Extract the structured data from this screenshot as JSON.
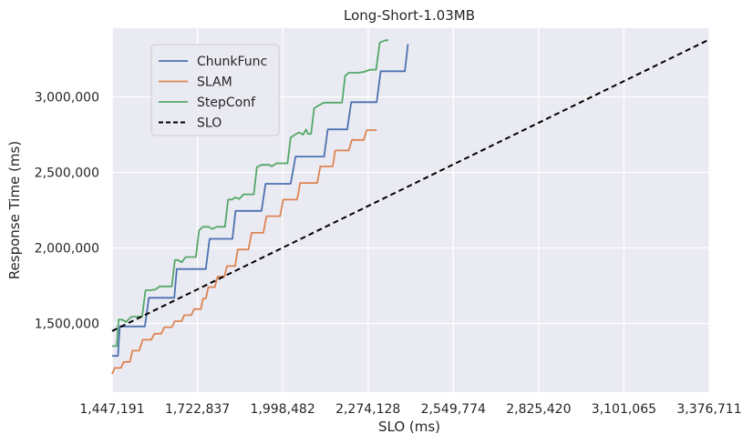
{
  "chart_data": {
    "type": "line",
    "title": "Long-Short-1.03MB",
    "xlabel": "SLO (ms)",
    "ylabel": "Response Time (ms)",
    "xlim": [
      1447191,
      3376711
    ],
    "ylim": [
      1045000,
      3455000
    ],
    "x_ticks": [
      1447191,
      1722837,
      1998482,
      2274128,
      2549774,
      2825420,
      3101065,
      3376711
    ],
    "x_tick_labels": [
      "1,447,191",
      "1,722,837",
      "1,998,482",
      "2,274,128",
      "2,549,774",
      "2,825,420",
      "3,101,065",
      "3,376,711"
    ],
    "y_ticks": [
      1500000,
      2000000,
      2500000,
      3000000
    ],
    "y_tick_labels": [
      "1,500,000",
      "2,000,000",
      "2,500,000",
      "3,000,000"
    ],
    "grid": true,
    "legend_position": "top-left",
    "series": [
      {
        "name": "ChunkFunc",
        "color": "#4c72b0",
        "style": "solid",
        "points": [
          [
            1447191,
            1285000
          ],
          [
            1466000,
            1285000
          ],
          [
            1472000,
            1480000
          ],
          [
            1553000,
            1480000
          ],
          [
            1566000,
            1670000
          ],
          [
            1648000,
            1670000
          ],
          [
            1656000,
            1860000
          ],
          [
            1750000,
            1860000
          ],
          [
            1762000,
            2060000
          ],
          [
            1836000,
            2060000
          ],
          [
            1846000,
            2245000
          ],
          [
            1930000,
            2245000
          ],
          [
            1943000,
            2425000
          ],
          [
            2024000,
            2425000
          ],
          [
            2040000,
            2605000
          ],
          [
            2132000,
            2605000
          ],
          [
            2144000,
            2785000
          ],
          [
            2207000,
            2785000
          ],
          [
            2220000,
            2965000
          ],
          [
            2302000,
            2965000
          ],
          [
            2315000,
            3170000
          ],
          [
            2393000,
            3170000
          ],
          [
            2403000,
            3350000
          ]
        ]
      },
      {
        "name": "SLAM",
        "color": "#dd8452",
        "style": "solid",
        "points": [
          [
            1447191,
            1165000
          ],
          [
            1455000,
            1205000
          ],
          [
            1476000,
            1205000
          ],
          [
            1484000,
            1245000
          ],
          [
            1505000,
            1245000
          ],
          [
            1513000,
            1320000
          ],
          [
            1535000,
            1320000
          ],
          [
            1546000,
            1392000
          ],
          [
            1574000,
            1392000
          ],
          [
            1584000,
            1432000
          ],
          [
            1606000,
            1432000
          ],
          [
            1616000,
            1475000
          ],
          [
            1640000,
            1475000
          ],
          [
            1650000,
            1515000
          ],
          [
            1672000,
            1515000
          ],
          [
            1680000,
            1555000
          ],
          [
            1703000,
            1555000
          ],
          [
            1712000,
            1595000
          ],
          [
            1734000,
            1595000
          ],
          [
            1741000,
            1665000
          ],
          [
            1750000,
            1665000
          ],
          [
            1758000,
            1740000
          ],
          [
            1779000,
            1740000
          ],
          [
            1788000,
            1810000
          ],
          [
            1810000,
            1810000
          ],
          [
            1818000,
            1880000
          ],
          [
            1845000,
            1880000
          ],
          [
            1853000,
            1990000
          ],
          [
            1888000,
            1990000
          ],
          [
            1898000,
            2100000
          ],
          [
            1936000,
            2100000
          ],
          [
            1946000,
            2210000
          ],
          [
            1990000,
            2210000
          ],
          [
            2000000,
            2320000
          ],
          [
            2045000,
            2320000
          ],
          [
            2055000,
            2430000
          ],
          [
            2110000,
            2430000
          ],
          [
            2120000,
            2540000
          ],
          [
            2160000,
            2540000
          ],
          [
            2168000,
            2645000
          ],
          [
            2212000,
            2645000
          ],
          [
            2222000,
            2715000
          ],
          [
            2260000,
            2715000
          ],
          [
            2270000,
            2780000
          ],
          [
            2302000,
            2780000
          ]
        ]
      },
      {
        "name": "StepConf",
        "color": "#55a868",
        "style": "solid",
        "points": [
          [
            1447191,
            1350000
          ],
          [
            1462000,
            1350000
          ],
          [
            1468000,
            1525000
          ],
          [
            1480000,
            1525000
          ],
          [
            1492000,
            1510000
          ],
          [
            1510000,
            1545000
          ],
          [
            1544000,
            1545000
          ],
          [
            1555000,
            1720000
          ],
          [
            1570000,
            1720000
          ],
          [
            1588000,
            1725000
          ],
          [
            1600000,
            1745000
          ],
          [
            1640000,
            1745000
          ],
          [
            1650000,
            1920000
          ],
          [
            1660000,
            1920000
          ],
          [
            1672000,
            1905000
          ],
          [
            1685000,
            1940000
          ],
          [
            1718000,
            1940000
          ],
          [
            1728000,
            2115000
          ],
          [
            1740000,
            2140000
          ],
          [
            1760000,
            2140000
          ],
          [
            1770000,
            2125000
          ],
          [
            1785000,
            2140000
          ],
          [
            1812000,
            2140000
          ],
          [
            1822000,
            2320000
          ],
          [
            1835000,
            2320000
          ],
          [
            1845000,
            2335000
          ],
          [
            1858000,
            2325000
          ],
          [
            1872000,
            2355000
          ],
          [
            1905000,
            2355000
          ],
          [
            1915000,
            2535000
          ],
          [
            1930000,
            2550000
          ],
          [
            1955000,
            2550000
          ],
          [
            1963000,
            2540000
          ],
          [
            1978000,
            2560000
          ],
          [
            2014000,
            2560000
          ],
          [
            2024000,
            2730000
          ],
          [
            2038000,
            2750000
          ],
          [
            2052000,
            2765000
          ],
          [
            2064000,
            2750000
          ],
          [
            2074000,
            2785000
          ],
          [
            2080000,
            2755000
          ],
          [
            2090000,
            2755000
          ],
          [
            2100000,
            2925000
          ],
          [
            2116000,
            2945000
          ],
          [
            2132000,
            2962000
          ],
          [
            2190000,
            2962000
          ],
          [
            2200000,
            3140000
          ],
          [
            2212000,
            3160000
          ],
          [
            2240000,
            3160000
          ],
          [
            2260000,
            3165000
          ],
          [
            2280000,
            3180000
          ],
          [
            2300000,
            3180000
          ],
          [
            2312000,
            3360000
          ],
          [
            2330000,
            3375000
          ],
          [
            2340000,
            3375000
          ]
        ]
      },
      {
        "name": "SLO",
        "color": "#000000",
        "style": "dashed",
        "points": [
          [
            1447191,
            1450000
          ],
          [
            3376711,
            3380000
          ]
        ]
      }
    ]
  }
}
